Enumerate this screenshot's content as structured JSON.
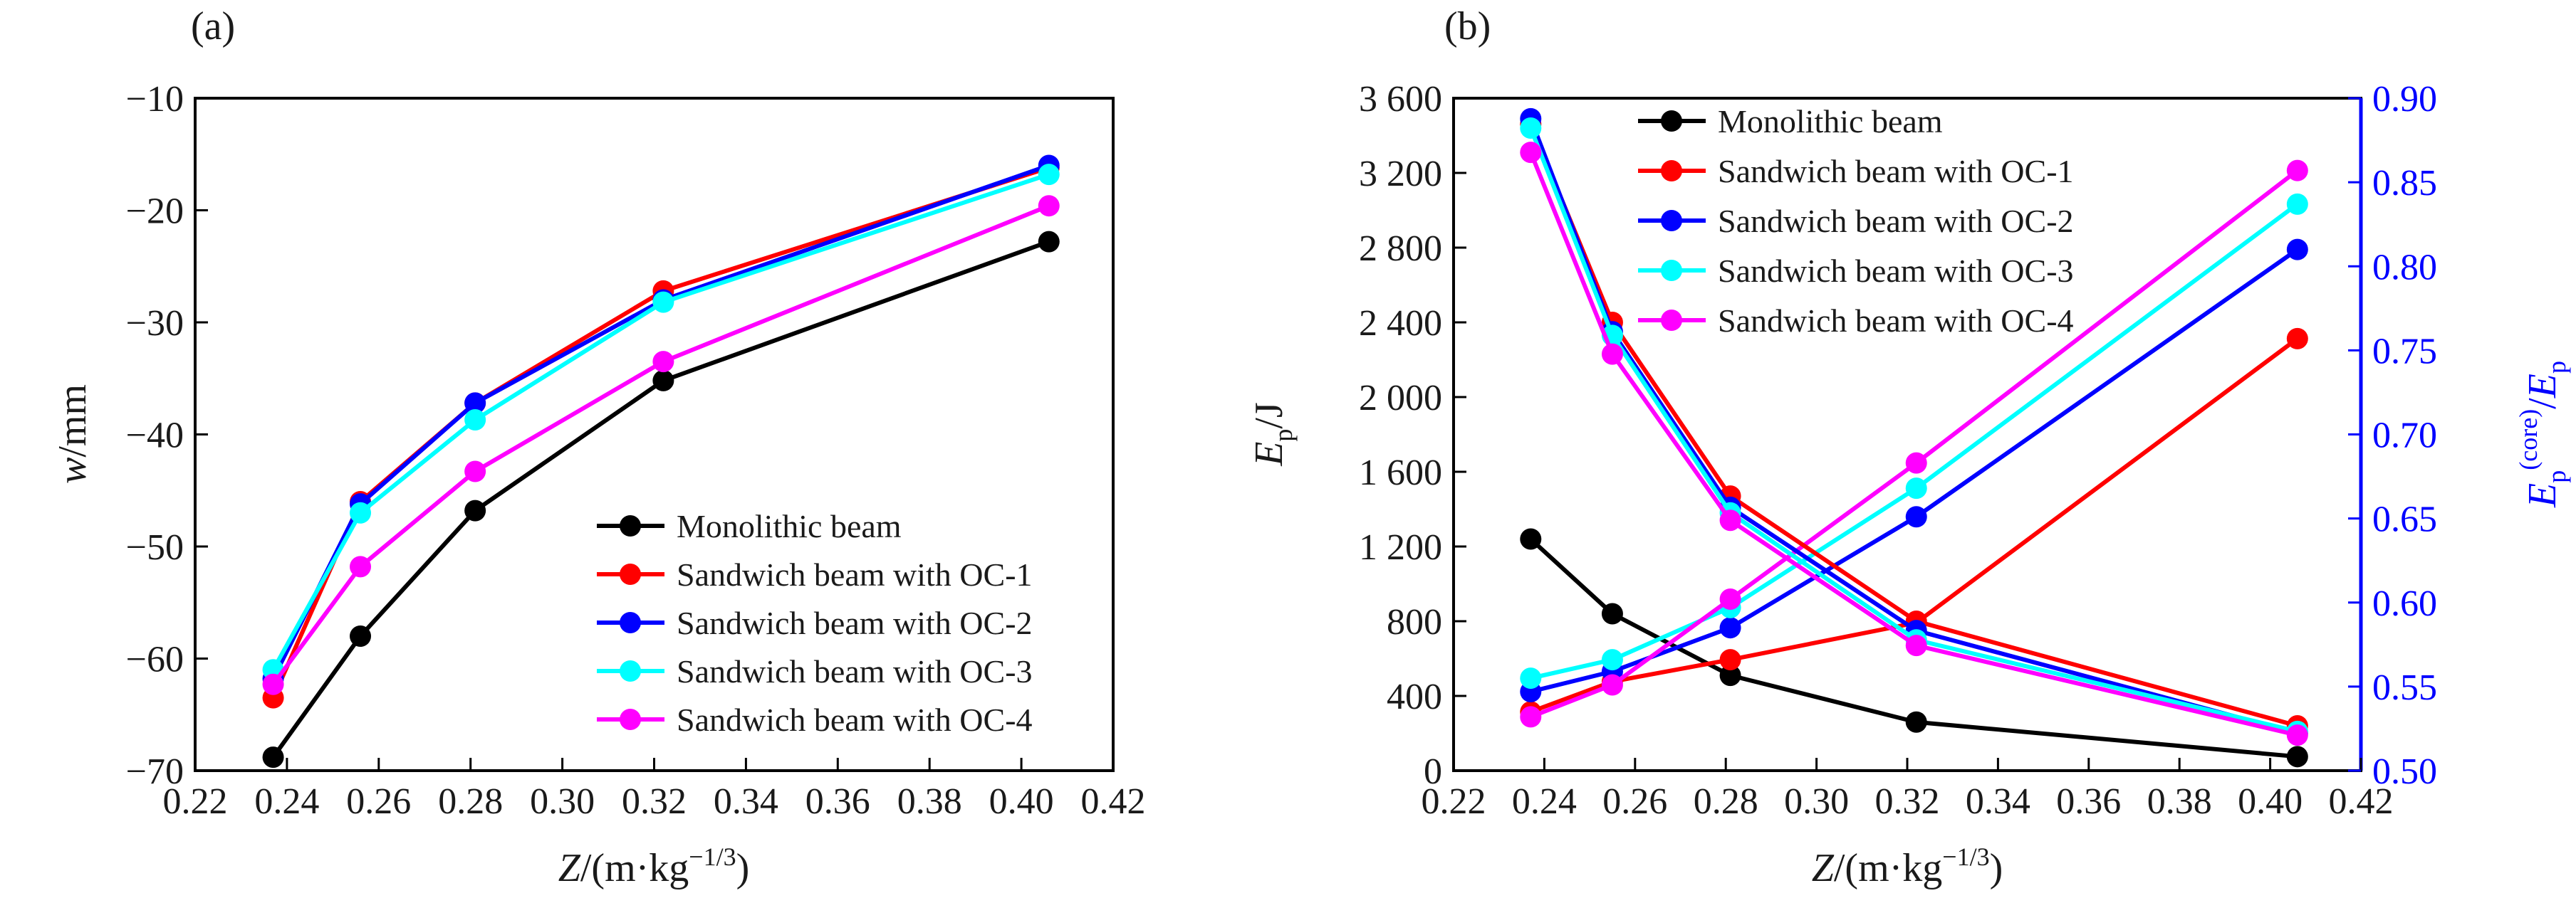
{
  "figure": {
    "panel_a_label": "(a)",
    "panel_b_label": "(b)",
    "x_label": "Z/(m·kg⁻¹/³)",
    "a_y_label": "w/mm",
    "b_y_label": "Eₚ/J",
    "b_y2_label": "Eₚ(core)/Eₚ"
  },
  "colors": {
    "Monolithic beam": "#000000",
    "Sandwich beam with OC-1": "#ff0000",
    "Sandwich beam with OC-2": "#0000ff",
    "Sandwich beam with OC-3": "#00ffff",
    "Sandwich beam with OC-4": "#ff00ff",
    "right_axis": "#0000ff"
  },
  "chart_data": [
    {
      "panel": "(a)",
      "type": "line",
      "xlabel": "Z/(m·kg⁻¹/³)",
      "ylabel": "w/mm",
      "xlim": [
        0.22,
        0.42
      ],
      "ylim": [
        -70,
        -10
      ],
      "x_ticks": [
        "0.22",
        "0.24",
        "0.26",
        "0.28",
        "0.30",
        "0.32",
        "0.34",
        "0.36",
        "0.38",
        "0.40",
        "0.42"
      ],
      "y_ticks": [
        "−70",
        "−60",
        "−50",
        "−40",
        "−30",
        "−20",
        "−10"
      ],
      "x_tick_values": [
        0.22,
        0.24,
        0.26,
        0.28,
        0.3,
        0.32,
        0.34,
        0.36,
        0.38,
        0.4,
        0.42
      ],
      "y_tick_values": [
        -70,
        -60,
        -50,
        -40,
        -30,
        -20,
        -10
      ],
      "x": [
        0.237,
        0.256,
        0.281,
        0.322,
        0.406
      ],
      "series": [
        {
          "name": "Monolithic beam",
          "values": [
            -68.8,
            -58.0,
            -46.8,
            -35.2,
            -22.8
          ]
        },
        {
          "name": "Sandwich beam with OC-1",
          "values": [
            -63.5,
            -46.0,
            -37.2,
            -27.2,
            -16.2
          ]
        },
        {
          "name": "Sandwich beam with OC-2",
          "values": [
            -61.8,
            -46.2,
            -37.2,
            -28.0,
            -16.0
          ]
        },
        {
          "name": "Sandwich beam with OC-3",
          "values": [
            -61.0,
            -47.0,
            -38.7,
            -28.2,
            -16.8
          ]
        },
        {
          "name": "Sandwich beam with OC-4",
          "values": [
            -62.3,
            -51.8,
            -43.3,
            -33.5,
            -19.6
          ]
        }
      ],
      "legend_position": "lower-right",
      "grid": false
    },
    {
      "panel": "(b)",
      "type": "line",
      "xlabel": "Z/(m·kg⁻¹/³)",
      "ylabel": "Eₚ/J",
      "y2label": "Eₚ(core)/Eₚ",
      "xlim": [
        0.22,
        0.42
      ],
      "ylim": [
        0,
        3600
      ],
      "y2lim": [
        0.5,
        0.9
      ],
      "x_ticks": [
        "0.22",
        "0.24",
        "0.26",
        "0.28",
        "0.30",
        "0.32",
        "0.34",
        "0.36",
        "0.38",
        "0.40",
        "0.42"
      ],
      "y_ticks": [
        "0",
        "400",
        "800",
        "1 200",
        "1 600",
        "2 000",
        "2 400",
        "2 800",
        "3 200",
        "3 600"
      ],
      "y2_ticks": [
        "0.50",
        "0.55",
        "0.60",
        "0.65",
        "0.70",
        "0.75",
        "0.80",
        "0.85",
        "0.90"
      ],
      "x_tick_values": [
        0.22,
        0.24,
        0.26,
        0.28,
        0.3,
        0.32,
        0.34,
        0.36,
        0.38,
        0.4,
        0.42
      ],
      "y_tick_values": [
        0,
        400,
        800,
        1200,
        1600,
        2000,
        2400,
        2800,
        3200,
        3600
      ],
      "y2_tick_values": [
        0.5,
        0.55,
        0.6,
        0.65,
        0.7,
        0.75,
        0.8,
        0.85,
        0.9
      ],
      "x": [
        0.237,
        0.255,
        0.281,
        0.322,
        0.406
      ],
      "series": [
        {
          "name": "Monolithic beam",
          "axis": "left",
          "values": [
            1240,
            840,
            510,
            260,
            75
          ]
        },
        {
          "name": "Sandwich beam with OC-1",
          "axis": "left",
          "values": [
            3460,
            2400,
            1470,
            800,
            240
          ]
        },
        {
          "name": "Sandwich beam with OC-2",
          "axis": "left",
          "values": [
            3490,
            2350,
            1410,
            750,
            200
          ]
        },
        {
          "name": "Sandwich beam with OC-3",
          "axis": "left",
          "values": [
            3440,
            2330,
            1380,
            700,
            210
          ]
        },
        {
          "name": "Sandwich beam with OC-4",
          "axis": "left",
          "values": [
            3310,
            2230,
            1340,
            670,
            190
          ]
        },
        {
          "name": "Sandwich beam with OC-1",
          "axis": "right",
          "values": [
            0.535,
            0.553,
            0.566,
            0.588,
            0.757
          ]
        },
        {
          "name": "Sandwich beam with OC-2",
          "axis": "right",
          "values": [
            0.547,
            0.559,
            0.585,
            0.651,
            0.81
          ]
        },
        {
          "name": "Sandwich beam with OC-3",
          "axis": "right",
          "values": [
            0.555,
            0.566,
            0.597,
            0.668,
            0.837
          ]
        },
        {
          "name": "Sandwich beam with OC-4",
          "axis": "right",
          "values": [
            0.532,
            0.551,
            0.602,
            0.683,
            0.857
          ]
        }
      ],
      "legend_position": "top-center",
      "grid": false
    }
  ]
}
